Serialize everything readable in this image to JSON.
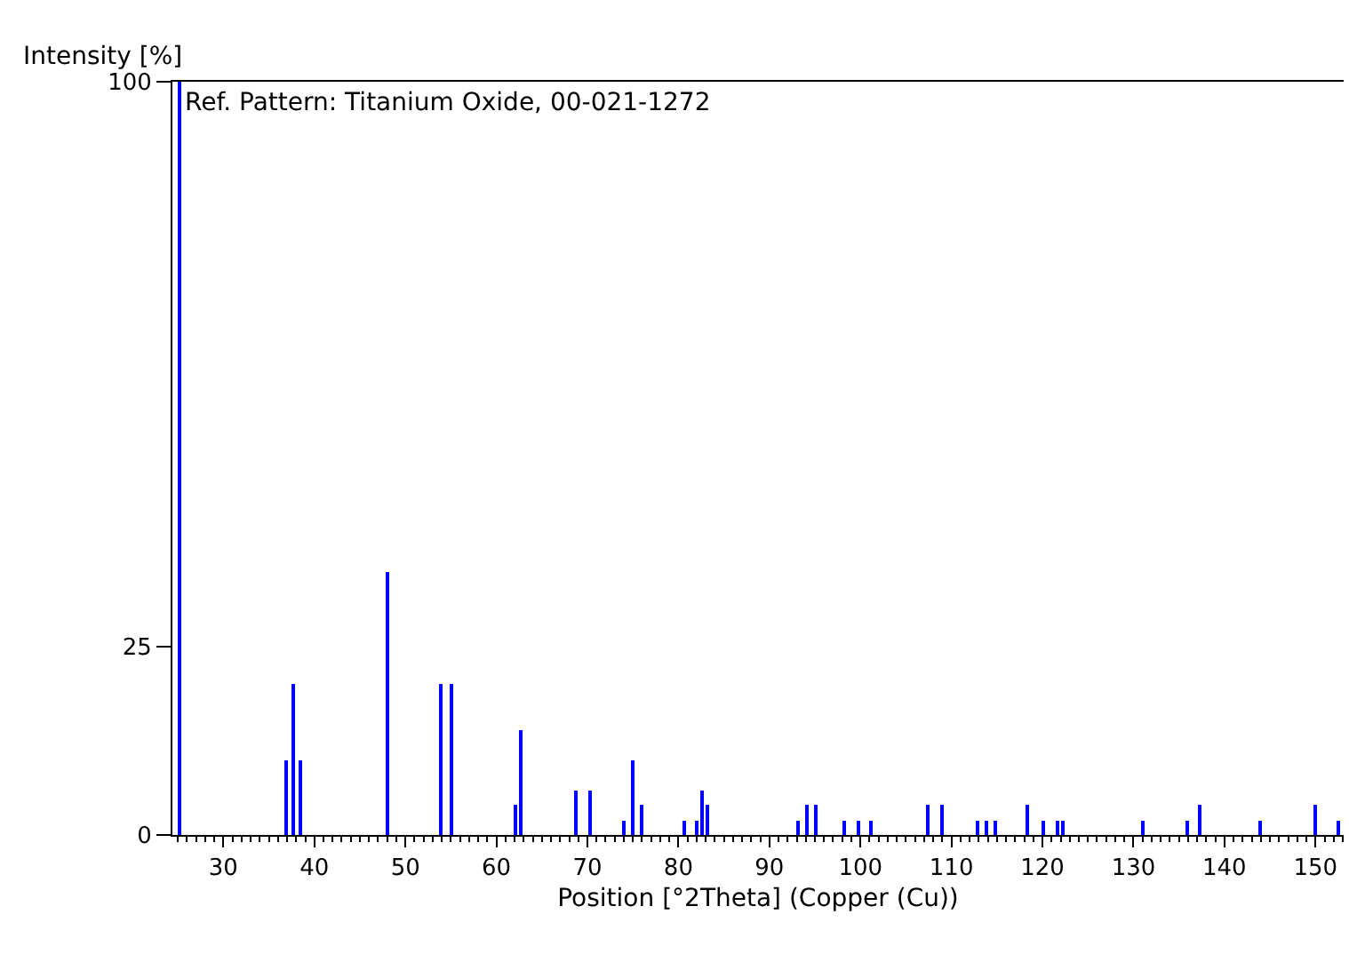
{
  "chart_data": {
    "type": "bar",
    "xlabel": "Position [°2Theta] (Copper (Cu))",
    "ylabel": "Intensity [%]",
    "annotations": [
      "Ref. Pattern: Titanium Oxide, 00-021-1272"
    ],
    "x": [
      25.28,
      36.95,
      37.8,
      38.58,
      48.05,
      53.89,
      55.06,
      62.12,
      62.69,
      68.76,
      70.31,
      74.03,
      75.03,
      76.02,
      80.73,
      82.14,
      82.66,
      83.15,
      93.22,
      94.18,
      95.14,
      98.32,
      99.8,
      101.22,
      107.44,
      108.96,
      112.84,
      113.86,
      114.9,
      118.44,
      120.1,
      121.72,
      122.33,
      131.03,
      135.99,
      137.38,
      143.88,
      150.03,
      152.62
    ],
    "values": [
      100,
      10,
      20,
      10,
      35,
      20,
      20,
      4,
      14,
      6,
      6,
      2,
      10,
      4,
      2,
      2,
      6,
      4,
      2,
      4,
      4,
      2,
      2,
      2,
      4,
      4,
      2,
      2,
      2,
      4,
      2,
      2,
      2,
      2,
      2,
      4,
      2,
      4,
      2
    ],
    "color": "#0000ff",
    "xlim": [
      24.4,
      153.1
    ],
    "xticks": [
      30,
      40,
      50,
      60,
      70,
      80,
      90,
      100,
      110,
      120,
      130,
      140,
      150
    ],
    "ylim": [
      0,
      100
    ],
    "yticks": [
      0,
      25,
      100
    ]
  }
}
